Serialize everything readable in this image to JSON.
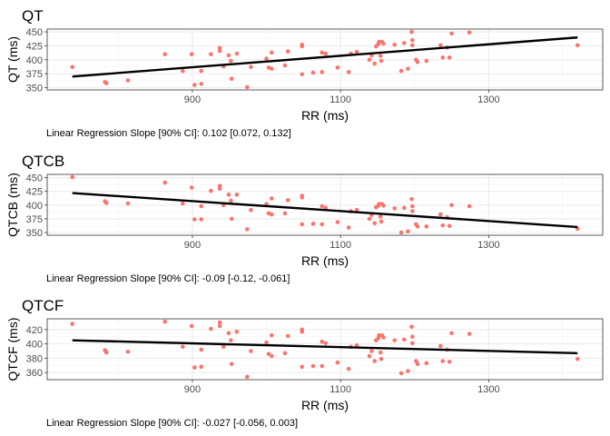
{
  "chart_data": [
    {
      "type": "scatter",
      "title": "QT",
      "xlabel": "RR (ms)",
      "ylabel": "QT (ms)",
      "annotation": "Linear Regression Slope [90% CI]: 0.102 [0.072, 0.132]",
      "xlim": [
        704,
        1454
      ],
      "ylim": [
        346,
        455
      ],
      "xticks": [
        900,
        1100,
        1300
      ],
      "yticks": [
        350,
        375,
        400,
        425,
        450
      ],
      "grid": true,
      "point_color": "#F8766D",
      "line_color": "#000000",
      "regression_line": {
        "x": [
          738,
          1420
        ],
        "y": [
          370,
          440
        ]
      },
      "x": [
        738,
        782,
        784,
        813,
        863,
        887,
        899,
        903,
        912,
        912,
        925,
        937,
        937,
        942,
        949,
        952,
        953,
        960,
        974,
        979,
        1000,
        1003,
        1007,
        1007,
        1025,
        1029,
        1048,
        1048,
        1048,
        1063,
        1075,
        1075,
        1080,
        1096,
        1111,
        1114,
        1122,
        1139,
        1142,
        1146,
        1148,
        1151,
        1152,
        1154,
        1155,
        1156,
        1158,
        1173,
        1182,
        1186,
        1191,
        1196,
        1197,
        1197,
        1202,
        1204,
        1216,
        1235,
        1238,
        1244,
        1247,
        1250,
        1274,
        1420
      ],
      "y": [
        387,
        360,
        358,
        363,
        410,
        380,
        410,
        355,
        380,
        357,
        410,
        421,
        416,
        388,
        408,
        398,
        366,
        411,
        351,
        387,
        402,
        386,
        384,
        413,
        390,
        415,
        427,
        424,
        374,
        377,
        378,
        413,
        411,
        386,
        378,
        411,
        414,
        400,
        408,
        393,
        424,
        428,
        432,
        407,
        398,
        432,
        429,
        427,
        380,
        430,
        384,
        450,
        435,
        426,
        400,
        396,
        398,
        426,
        404,
        422,
        404,
        447,
        449,
        426
      ]
    },
    {
      "type": "scatter",
      "title": "QTCB",
      "xlabel": "RR (ms)",
      "ylabel": "QTCB (ms)",
      "annotation": "Linear Regression Slope [90% CI]: -0.09 [-0.12, -0.061]",
      "xlim": [
        704,
        1454
      ],
      "ylim": [
        345,
        456
      ],
      "xticks": [
        900,
        1100,
        1300
      ],
      "yticks": [
        350,
        375,
        400,
        425,
        450
      ],
      "grid": true,
      "point_color": "#F8766D",
      "line_color": "#000000",
      "regression_line": {
        "x": [
          738,
          1420
        ],
        "y": [
          422,
          360
        ]
      },
      "x": [
        738,
        782,
        784,
        813,
        863,
        887,
        899,
        903,
        912,
        912,
        925,
        937,
        937,
        942,
        949,
        952,
        953,
        960,
        974,
        979,
        1000,
        1003,
        1007,
        1007,
        1025,
        1029,
        1048,
        1048,
        1048,
        1063,
        1075,
        1075,
        1080,
        1096,
        1111,
        1114,
        1122,
        1139,
        1142,
        1146,
        1148,
        1151,
        1152,
        1154,
        1155,
        1156,
        1158,
        1173,
        1182,
        1186,
        1191,
        1196,
        1197,
        1197,
        1202,
        1204,
        1216,
        1235,
        1238,
        1244,
        1247,
        1250,
        1274,
        1420
      ],
      "y": [
        451,
        407,
        404,
        403,
        441,
        403,
        432,
        374,
        398,
        374,
        426,
        435,
        430,
        400,
        419,
        408,
        375,
        419,
        356,
        391,
        402,
        385,
        383,
        412,
        385,
        409,
        417,
        414,
        365,
        366,
        365,
        398,
        395,
        369,
        359,
        389,
        391,
        375,
        382,
        367,
        396,
        399,
        402,
        379,
        370,
        402,
        399,
        394,
        350,
        395,
        352,
        411,
        398,
        389,
        365,
        361,
        361,
        383,
        363,
        378,
        362,
        400,
        398,
        357
      ]
    },
    {
      "type": "scatter",
      "title": "QTCF",
      "xlabel": "RR (ms)",
      "ylabel": "QTCF (ms)",
      "annotation": "Linear Regression Slope [90% CI]: -0.027 [-0.056, 0.003]",
      "xlim": [
        704,
        1454
      ],
      "ylim": [
        350,
        435
      ],
      "xticks": [
        900,
        1100,
        1300
      ],
      "yticks": [
        360,
        380,
        400,
        420
      ],
      "grid": true,
      "point_color": "#F8766D",
      "line_color": "#000000",
      "regression_line": {
        "x": [
          738,
          1420
        ],
        "y": [
          405,
          387
        ]
      },
      "x": [
        738,
        782,
        784,
        813,
        863,
        887,
        899,
        903,
        912,
        912,
        925,
        937,
        937,
        942,
        949,
        952,
        953,
        960,
        974,
        979,
        1000,
        1003,
        1007,
        1007,
        1025,
        1029,
        1048,
        1048,
        1048,
        1063,
        1075,
        1075,
        1080,
        1096,
        1111,
        1114,
        1122,
        1139,
        1142,
        1146,
        1148,
        1151,
        1152,
        1154,
        1155,
        1156,
        1158,
        1173,
        1182,
        1186,
        1191,
        1196,
        1197,
        1197,
        1202,
        1204,
        1216,
        1235,
        1238,
        1244,
        1247,
        1250,
        1274,
        1420
      ],
      "y": [
        428,
        391,
        388,
        389,
        431,
        396,
        425,
        367,
        392,
        368,
        421,
        430,
        425,
        396,
        415,
        405,
        372,
        417,
        354,
        390,
        402,
        386,
        383,
        412,
        387,
        411,
        420,
        417,
        368,
        369,
        369,
        403,
        401,
        374,
        365,
        396,
        398,
        383,
        390,
        376,
        405,
        408,
        412,
        388,
        379,
        412,
        409,
        405,
        359,
        406,
        362,
        424,
        410,
        401,
        376,
        372,
        373,
        397,
        376,
        392,
        375,
        415,
        414,
        379
      ]
    }
  ]
}
